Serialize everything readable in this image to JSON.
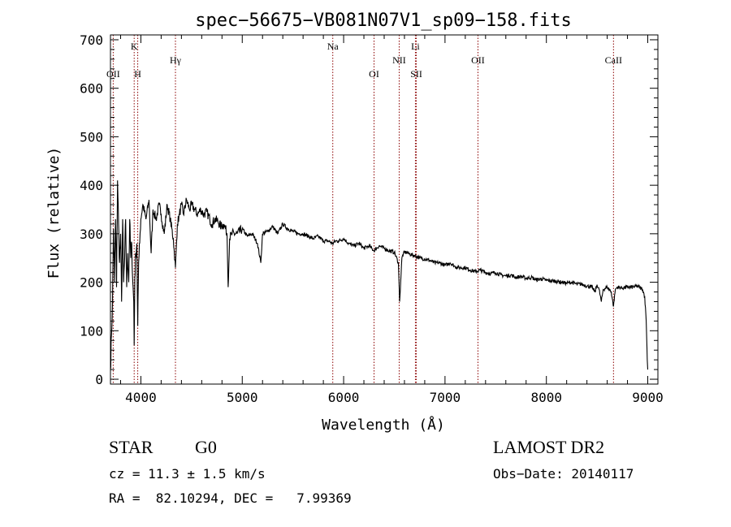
{
  "chart_data": {
    "type": "line",
    "title": "spec−56675−VB081N07V1_sp09−158.fits",
    "xlabel": "Wavelength (Å)",
    "ylabel": "Flux (relative)",
    "xlim": [
      3700,
      9100
    ],
    "ylim": [
      -10,
      710
    ],
    "xticks": [
      4000,
      5000,
      6000,
      7000,
      8000,
      9000
    ],
    "xtick_labels": [
      "4000",
      "5000",
      "6000",
      "7000",
      "8000",
      "9000"
    ],
    "yticks": [
      0,
      100,
      200,
      300,
      400,
      500,
      600,
      700
    ],
    "ytick_labels": [
      "0",
      "100",
      "200",
      "300",
      "400",
      "500",
      "600",
      "700"
    ],
    "line_color": "#000000",
    "marker_color": "#8b0000",
    "lines": [
      {
        "label": "OII",
        "x": 3727,
        "row": 2
      },
      {
        "label": "K",
        "x": 3934,
        "row": 0
      },
      {
        "label": "H",
        "x": 3969,
        "row": 2
      },
      {
        "label": "Hγ",
        "x": 4341,
        "row": 1
      },
      {
        "label": "Na",
        "x": 5893,
        "row": 0
      },
      {
        "label": "OI",
        "x": 6300,
        "row": 2
      },
      {
        "label": "NII",
        "x": 6548,
        "row": 1
      },
      {
        "label": "Li",
        "x": 6708,
        "row": 0
      },
      {
        "label": "SII",
        "x": 6717,
        "row": 2
      },
      {
        "label": "OII",
        "x": 7325,
        "row": 1
      },
      {
        "label": "CaII",
        "x": 8662,
        "row": 1
      }
    ],
    "series": [
      {
        "x": [
          3700,
          3710,
          3720,
          3730,
          3740,
          3750,
          3760,
          3770,
          3780,
          3790,
          3800,
          3810,
          3820,
          3830,
          3840,
          3850,
          3860,
          3870,
          3880,
          3890,
          3900,
          3910,
          3920,
          3930,
          3934,
          3940,
          3950,
          3960,
          3969,
          3975,
          3985,
          4000,
          4020,
          4050,
          4080,
          4101,
          4120,
          4150,
          4180,
          4200,
          4230,
          4260,
          4290,
          4320,
          4341,
          4360,
          4380,
          4400,
          4420,
          4450,
          4480,
          4500,
          4530,
          4560,
          4590,
          4620,
          4650,
          4680,
          4700,
          4730,
          4760,
          4790,
          4820,
          4850,
          4861,
          4875,
          4900,
          4950,
          5000,
          5050,
          5100,
          5150,
          5183,
          5200,
          5250,
          5300,
          5350,
          5400,
          5450,
          5500,
          5550,
          5600,
          5650,
          5700,
          5750,
          5800,
          5850,
          5893,
          5920,
          5950,
          6000,
          6050,
          6100,
          6150,
          6200,
          6250,
          6300,
          6350,
          6400,
          6450,
          6500,
          6540,
          6552,
          6563,
          6575,
          6590,
          6620,
          6650,
          6700,
          6750,
          6800,
          6850,
          6900,
          6950,
          7000,
          7050,
          7100,
          7150,
          7200,
          7250,
          7300,
          7350,
          7400,
          7450,
          7500,
          7550,
          7600,
          7650,
          7700,
          7750,
          7800,
          7850,
          7900,
          7950,
          8000,
          8050,
          8100,
          8150,
          8200,
          8250,
          8300,
          8350,
          8400,
          8450,
          8480,
          8500,
          8520,
          8542,
          8560,
          8600,
          8640,
          8662,
          8680,
          8700,
          8750,
          8800,
          8850,
          8900,
          8950,
          8970,
          8985,
          8995,
          9000
        ],
        "y": [
          20,
          90,
          160,
          310,
          200,
          330,
          190,
          410,
          320,
          240,
          300,
          160,
          330,
          200,
          250,
          330,
          190,
          260,
          200,
          330,
          250,
          280,
          200,
          160,
          70,
          210,
          260,
          280,
          110,
          200,
          280,
          330,
          360,
          330,
          370,
          260,
          350,
          330,
          360,
          340,
          300,
          360,
          330,
          290,
          230,
          320,
          340,
          360,
          340,
          370,
          350,
          360,
          350,
          340,
          350,
          340,
          345,
          330,
          320,
          330,
          325,
          315,
          320,
          300,
          190,
          290,
          300,
          300,
          310,
          295,
          300,
          280,
          240,
          300,
          305,
          315,
          300,
          320,
          310,
          305,
          300,
          300,
          295,
          290,
          295,
          285,
          285,
          280,
          285,
          285,
          290,
          280,
          275,
          280,
          270,
          275,
          265,
          275,
          270,
          265,
          262,
          240,
          160,
          200,
          250,
          260,
          262,
          258,
          255,
          250,
          248,
          245,
          240,
          240,
          235,
          240,
          232,
          230,
          230,
          225,
          222,
          225,
          220,
          218,
          220,
          215,
          213,
          215,
          210,
          212,
          208,
          210,
          205,
          207,
          204,
          203,
          202,
          200,
          198,
          200,
          196,
          196,
          192,
          190,
          180,
          195,
          185,
          160,
          185,
          190,
          180,
          150,
          185,
          190,
          188,
          190,
          190,
          192,
          185,
          170,
          120,
          40,
          20
        ]
      }
    ]
  },
  "info": {
    "object_class": "STAR",
    "subclass": "G0",
    "survey": "LAMOST DR2",
    "cz": "cz = 11.3 ± 1.5 km/s",
    "obs_date": "Obs−Date: 20140117",
    "coords": "RA =  82.10294, DEC =   7.99369"
  }
}
